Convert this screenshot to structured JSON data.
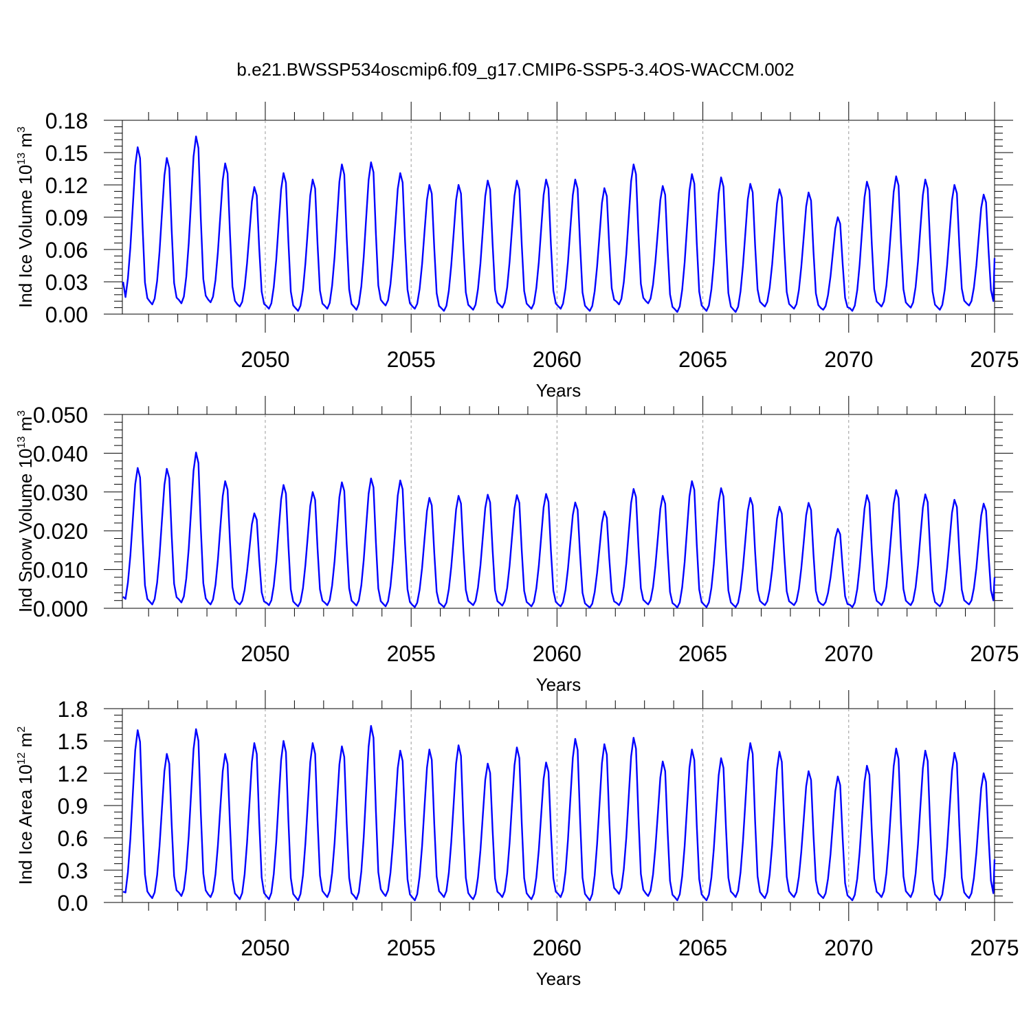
{
  "title": "b.e21.BWSSP534oscmip6.f09_g17.CMIP6-SSP5-3.4OS-WACCM.002",
  "series_color": "#0000ff",
  "grid_color": "#999999",
  "chart_data": [
    {
      "type": "line",
      "ylabel": {
        "prefix": "Ind Ice Volume 10",
        "exp": "13",
        "unit": " m",
        "unit_exp": "3"
      },
      "xlabel": "Years",
      "xlim": [
        2045.1,
        2075.0
      ],
      "ylim": [
        0.0,
        0.18
      ],
      "yticks": [
        "0.00",
        "0.03",
        "0.06",
        "0.09",
        "0.12",
        "0.15",
        "0.18"
      ],
      "xticks": [
        "2050",
        "2055",
        "2060",
        "2065",
        "2070",
        "2075"
      ],
      "grid": "vertical dashed at labeled years",
      "annual_peaks": [
        0.155,
        0.145,
        0.165,
        0.14,
        0.118,
        0.131,
        0.125,
        0.139,
        0.141,
        0.131,
        0.12,
        0.12,
        0.124,
        0.124,
        0.125,
        0.125,
        0.117,
        0.139,
        0.119,
        0.13,
        0.127,
        0.121,
        0.116,
        0.113,
        0.09,
        0.123,
        0.128,
        0.125,
        0.12,
        0.111
      ],
      "annual_minima": [
        0.01,
        0.009,
        0.01,
        0.011,
        0.007,
        0.005,
        0.003,
        0.005,
        0.004,
        0.008,
        0.005,
        0.003,
        0.004,
        0.006,
        0.005,
        0.005,
        0.003,
        0.009,
        0.01,
        0.002,
        0.003,
        0.002,
        0.007,
        0.005,
        0.004,
        0.003,
        0.007,
        0.006,
        0.004,
        0.008
      ],
      "start_value": 0.03,
      "end_value": 0.052
    },
    {
      "type": "line",
      "ylabel": {
        "prefix": "Ind Snow Volume 10",
        "exp": "13",
        "unit": " m",
        "unit_exp": "3"
      },
      "xlabel": "Years",
      "xlim": [
        2045.1,
        2075.0
      ],
      "ylim": [
        0.0,
        0.05
      ],
      "yticks": [
        "0.000",
        "0.010",
        "0.020",
        "0.030",
        "0.040",
        "0.050"
      ],
      "xticks": [
        "2050",
        "2055",
        "2060",
        "2065",
        "2070",
        "2075"
      ],
      "grid": "vertical dashed at labeled years",
      "annual_peaks": [
        0.0362,
        0.036,
        0.0402,
        0.0328,
        0.0245,
        0.0318,
        0.03,
        0.0325,
        0.0335,
        0.033,
        0.0285,
        0.029,
        0.0293,
        0.0292,
        0.0295,
        0.0273,
        0.025,
        0.0308,
        0.029,
        0.0328,
        0.031,
        0.0285,
        0.0262,
        0.0272,
        0.0205,
        0.0292,
        0.0305,
        0.0294,
        0.028,
        0.027
      ],
      "annual_minima": [
        0.001,
        0.001,
        0.0015,
        0.001,
        0.001,
        0.0008,
        0.0005,
        0.0008,
        0.0007,
        0.0005,
        0.0003,
        0.0003,
        0.0008,
        0.0007,
        0.0005,
        0.0005,
        0.0002,
        0.0008,
        0.001,
        0.0002,
        0.0003,
        0.0003,
        0.0008,
        0.0008,
        0.0008,
        0.0003,
        0.0008,
        0.0008,
        0.0005,
        0.001
      ],
      "start_value": 0.003,
      "end_value": 0.008
    },
    {
      "type": "line",
      "ylabel": {
        "prefix": "Ind Ice Area 10",
        "exp": "12",
        "unit": " m",
        "unit_exp": "2"
      },
      "xlabel": "Years",
      "xlim": [
        2045.1,
        2075.0
      ],
      "ylim": [
        0.0,
        1.8
      ],
      "yticks": [
        "0.0",
        "0.3",
        "0.6",
        "0.9",
        "1.2",
        "1.5",
        "1.8"
      ],
      "xticks": [
        "2050",
        "2055",
        "2060",
        "2065",
        "2070",
        "2075"
      ],
      "grid": "vertical dashed at labeled years",
      "annual_peaks": [
        1.6,
        1.38,
        1.61,
        1.38,
        1.48,
        1.5,
        1.48,
        1.45,
        1.64,
        1.41,
        1.42,
        1.46,
        1.29,
        1.44,
        1.3,
        1.52,
        1.47,
        1.53,
        1.31,
        1.42,
        1.34,
        1.48,
        1.4,
        1.22,
        1.17,
        1.27,
        1.43,
        1.41,
        1.39,
        1.2
      ],
      "annual_minima": [
        0.03,
        0.04,
        0.06,
        0.05,
        0.03,
        0.03,
        0.02,
        0.05,
        0.03,
        0.06,
        0.02,
        0.05,
        0.03,
        0.05,
        0.03,
        0.05,
        0.02,
        0.08,
        0.06,
        0.02,
        0.02,
        0.05,
        0.04,
        0.05,
        0.04,
        0.02,
        0.05,
        0.05,
        0.02,
        0.04
      ],
      "start_value": 0.1,
      "end_value": 0.4
    }
  ]
}
